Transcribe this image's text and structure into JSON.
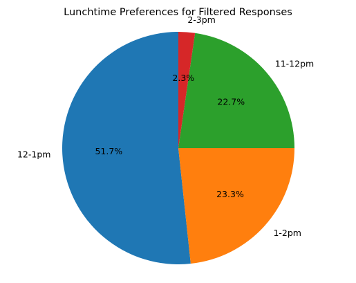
{
  "chart_data": {
    "type": "pie",
    "title": "Lunchtime Preferences for Filtered Responses",
    "categories": [
      "12-1pm",
      "1-2pm",
      "11-12pm",
      "2-3pm"
    ],
    "values": [
      51.7,
      23.3,
      22.7,
      2.3
    ],
    "value_labels": [
      "51.7%",
      "23.3%",
      "22.7%",
      "2.3%"
    ],
    "colors": [
      "#1f77b4",
      "#ff7f0e",
      "#2ca02c",
      "#d62728"
    ],
    "start_angle_deg": 90,
    "direction": "counterclockwise",
    "legend": "none"
  }
}
